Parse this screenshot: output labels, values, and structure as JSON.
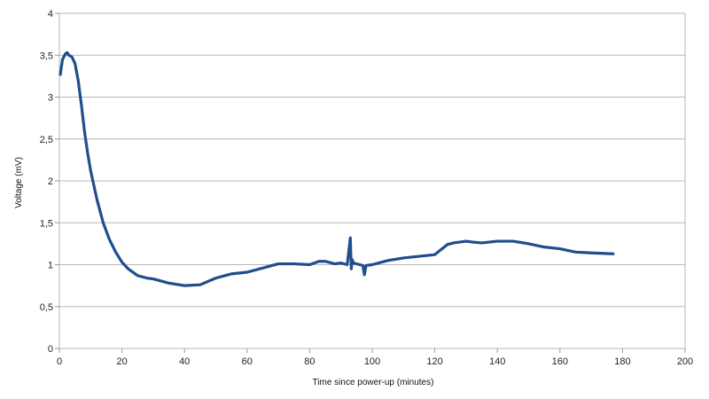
{
  "chart_data": {
    "type": "line",
    "title": "",
    "xlabel": "Time since power-up (minutes)",
    "ylabel": "Voltage (mV)",
    "xlim": [
      0,
      200
    ],
    "ylim": [
      0,
      4
    ],
    "x_ticks": [
      0,
      20,
      40,
      60,
      80,
      100,
      120,
      140,
      160,
      180,
      200
    ],
    "y_ticks": [
      0,
      0.5,
      1,
      1.5,
      2,
      2.5,
      3,
      3.5,
      4
    ],
    "x_tick_labels": [
      "0",
      "20",
      "40",
      "60",
      "80",
      "100",
      "120",
      "140",
      "160",
      "180",
      "200"
    ],
    "y_tick_labels": [
      "0",
      "0,5",
      "1",
      "1,5",
      "2",
      "2,5",
      "3",
      "3,5",
      "4"
    ],
    "grid": "horizontal",
    "legend": "none",
    "series": [
      {
        "color": "#1f4e8c",
        "x": [
          0.3,
          1,
          2,
          2.5,
          3,
          4,
          5,
          6,
          7,
          8,
          9,
          10,
          12,
          14,
          16,
          18,
          20,
          22,
          25,
          28,
          30,
          35,
          40,
          45,
          50,
          55,
          60,
          65,
          70,
          75,
          80,
          83,
          85,
          88,
          90,
          92,
          93,
          93.3,
          93.6,
          94,
          96,
          97,
          97.5,
          98,
          100,
          105,
          110,
          115,
          120,
          122,
          124,
          126,
          130,
          132,
          135,
          140,
          145,
          150,
          155,
          160,
          165,
          170,
          177
        ],
        "y": [
          3.27,
          3.45,
          3.52,
          3.53,
          3.5,
          3.48,
          3.4,
          3.2,
          2.92,
          2.6,
          2.34,
          2.12,
          1.78,
          1.5,
          1.3,
          1.15,
          1.03,
          0.95,
          0.87,
          0.84,
          0.83,
          0.78,
          0.75,
          0.76,
          0.84,
          0.89,
          0.91,
          0.96,
          1.01,
          1.01,
          1.0,
          1.04,
          1.04,
          1.01,
          1.02,
          1.0,
          1.32,
          0.95,
          1.06,
          1.02,
          1.0,
          0.99,
          0.88,
          0.99,
          1.0,
          1.05,
          1.08,
          1.1,
          1.12,
          1.18,
          1.24,
          1.26,
          1.28,
          1.27,
          1.26,
          1.28,
          1.28,
          1.25,
          1.21,
          1.19,
          1.15,
          1.14,
          1.13
        ]
      }
    ]
  }
}
